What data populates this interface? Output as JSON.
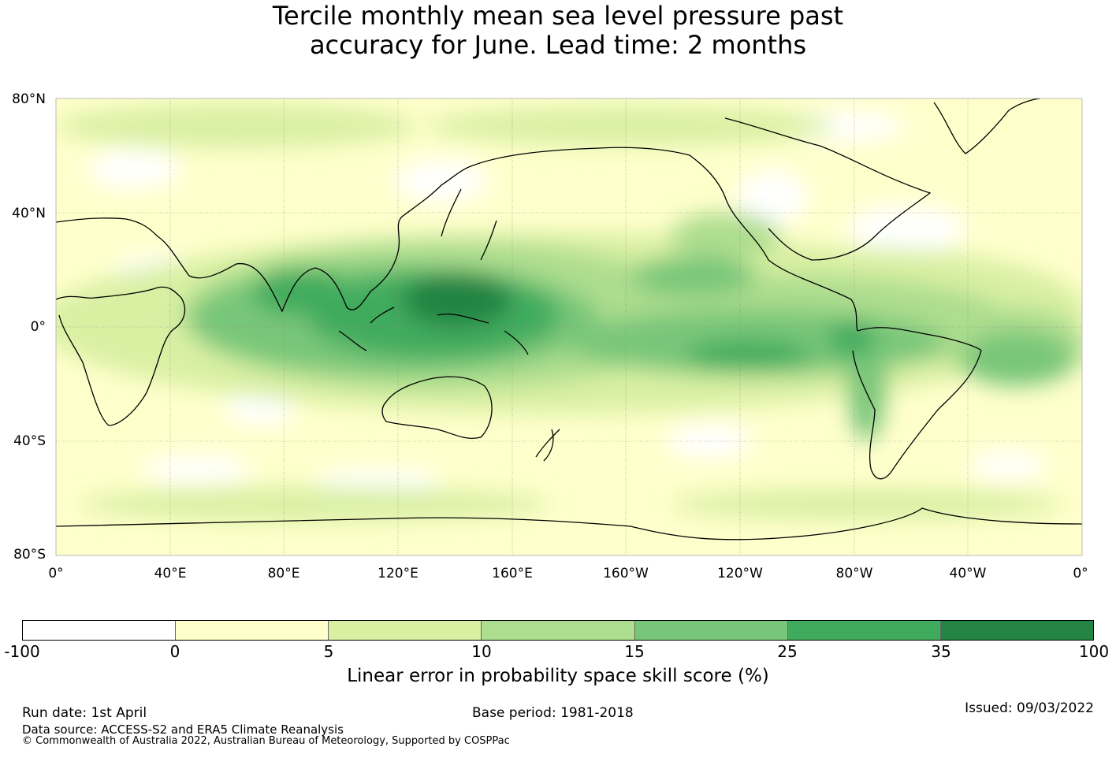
{
  "title": {
    "line1": "Tercile monthly mean sea level pressure past",
    "line2": "accuracy for June. Lead time: 2 months"
  },
  "map": {
    "lat_labels": [
      "80°N",
      "40°N",
      "0°",
      "40°S",
      "80°S"
    ],
    "lon_labels": [
      "0°",
      "40°E",
      "80°E",
      "120°E",
      "160°E",
      "160°W",
      "120°W",
      "80°W",
      "40°W",
      "0°"
    ],
    "lon_range": [
      0,
      360
    ],
    "lat_range": [
      -80,
      80
    ],
    "colormap": "sequential green",
    "gridlines": true
  },
  "colorbar": {
    "ticks": [
      "-100",
      "0",
      "5",
      "10",
      "15",
      "25",
      "35",
      "100"
    ],
    "colors": [
      "#ffffff",
      "#ffffcc",
      "#d9f0a3",
      "#addd8e",
      "#78c679",
      "#41ab5d",
      "#238443"
    ],
    "label": "Linear error in probability space skill score (%)"
  },
  "footer": {
    "run_date": "Run date: 1st April",
    "base_period": "Base period: 1981-2018",
    "issued": "Issued: 09/03/2022",
    "data_source": "Data source: ACCESS-S2 and ERA5 Climate Reanalysis",
    "copyright": "© Commonwealth of Australia 2022, Australian Bureau of Meteorology, Supported by COSPPac"
  }
}
